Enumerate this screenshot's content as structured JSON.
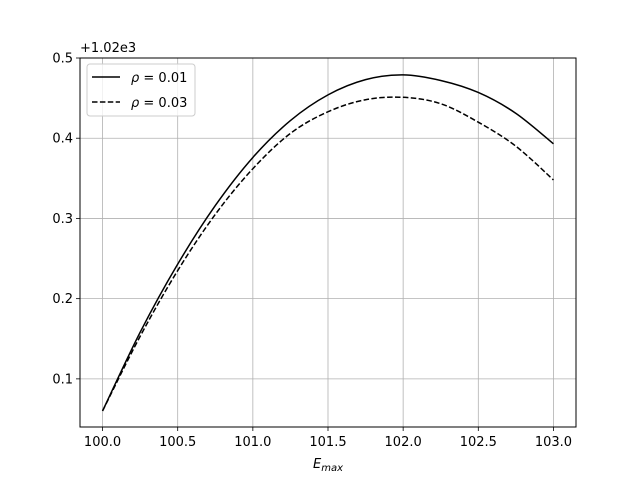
{
  "chart_data": {
    "type": "line",
    "xlabel": "E",
    "xlabel_sub": "max",
    "ylabel": "",
    "y_offset_label": "+1.02e3",
    "y_offset": 1020,
    "xlim": [
      99.85,
      103.15
    ],
    "ylim": [
      0.04,
      0.5
    ],
    "x_ticks": [
      100.0,
      100.5,
      101.0,
      101.5,
      102.0,
      102.5,
      103.0
    ],
    "x_tick_labels": [
      "100.0",
      "100.5",
      "101.0",
      "101.5",
      "102.0",
      "102.5",
      "103.0"
    ],
    "y_ticks": [
      0.1,
      0.2,
      0.3,
      0.4,
      0.5
    ],
    "y_tick_labels": [
      "0.1",
      "0.2",
      "0.3",
      "0.4",
      "0.5"
    ],
    "grid": true,
    "legend_position": "top-left",
    "x": [
      100.0,
      100.25,
      100.5,
      100.75,
      101.0,
      101.25,
      101.5,
      101.75,
      102.0,
      102.25,
      102.5,
      102.75,
      103.0
    ],
    "series": [
      {
        "name": "ρ = 0.01",
        "name_symbol": "ρ",
        "name_rest": " = 0.01",
        "style": "solid",
        "color": "#000000",
        "values": [
          0.06,
          0.158,
          0.243,
          0.316,
          0.376,
          0.422,
          0.454,
          0.473,
          0.479,
          0.472,
          0.457,
          0.431,
          0.393
        ]
      },
      {
        "name": "ρ = 0.03",
        "name_symbol": "ρ",
        "name_rest": " = 0.03",
        "style": "dashed",
        "color": "#000000",
        "values": [
          0.06,
          0.153,
          0.235,
          0.305,
          0.362,
          0.406,
          0.433,
          0.448,
          0.451,
          0.443,
          0.42,
          0.39,
          0.348
        ]
      }
    ]
  }
}
